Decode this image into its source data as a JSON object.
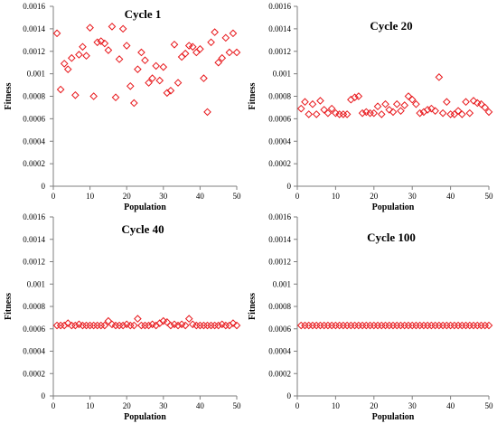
{
  "chart_data": [
    {
      "type": "scatter",
      "title": "Cycle 1",
      "xlabel": "Population",
      "ylabel": "Fitness",
      "xlim": [
        0,
        50
      ],
      "ylim": [
        0,
        0.0016
      ],
      "xticks": [
        "0",
        "10",
        "20",
        "30",
        "40",
        "50"
      ],
      "yticks": [
        "0",
        "0.0002",
        "0.0004",
        "0.0006",
        "0.0008",
        "0.001",
        "0.0012",
        "0.0014",
        "0.0016"
      ],
      "grid": false,
      "series": [
        {
          "x": [
            1,
            2,
            3,
            4,
            5,
            6,
            7,
            8,
            9,
            10,
            11,
            12,
            13,
            14,
            15,
            16,
            17,
            18,
            19,
            20,
            21,
            22,
            23,
            24,
            25,
            26,
            27,
            28,
            29,
            30,
            31,
            32,
            33,
            34,
            35,
            36,
            37,
            38,
            39,
            40,
            41,
            42,
            43,
            44,
            45,
            46,
            47,
            48,
            49,
            50
          ],
          "y": [
            0.00136,
            0.00086,
            0.00109,
            0.00104,
            0.00114,
            0.00081,
            0.00117,
            0.00124,
            0.00116,
            0.00141,
            0.0008,
            0.00128,
            0.00129,
            0.00127,
            0.00121,
            0.00142,
            0.00079,
            0.00113,
            0.0014,
            0.00125,
            0.00089,
            0.00074,
            0.00104,
            0.00119,
            0.00112,
            0.00092,
            0.00096,
            0.00107,
            0.00094,
            0.00106,
            0.00083,
            0.00085,
            0.00126,
            0.00092,
            0.00115,
            0.00118,
            0.00125,
            0.00124,
            0.00119,
            0.00122,
            0.00096,
            0.00066,
            0.00128,
            0.00137,
            0.0011,
            0.00114,
            0.00132,
            0.00119,
            0.00136,
            0.00119
          ]
        }
      ]
    },
    {
      "type": "scatter",
      "title": "Cycle 20",
      "xlabel": "Population",
      "ylabel": "Fitness",
      "xlim": [
        0,
        50
      ],
      "ylim": [
        0,
        0.0016
      ],
      "xticks": [
        "0",
        "10",
        "20",
        "30",
        "40",
        "50"
      ],
      "yticks": [
        "0",
        "0.0002",
        "0.0004",
        "0.0006",
        "0.0008",
        "0.001",
        "0.0012",
        "0.0014",
        "0.0016"
      ],
      "grid": false,
      "series": [
        {
          "x": [
            1,
            2,
            3,
            4,
            5,
            6,
            7,
            8,
            9,
            10,
            11,
            12,
            13,
            14,
            15,
            16,
            17,
            18,
            19,
            20,
            21,
            22,
            23,
            24,
            25,
            26,
            27,
            28,
            29,
            30,
            31,
            32,
            33,
            34,
            35,
            36,
            37,
            38,
            39,
            40,
            41,
            42,
            43,
            44,
            45,
            46,
            47,
            48,
            49,
            50
          ],
          "y": [
            0.00069,
            0.00075,
            0.00064,
            0.00073,
            0.00064,
            0.00076,
            0.00068,
            0.00065,
            0.00069,
            0.00065,
            0.00064,
            0.00064,
            0.00064,
            0.00077,
            0.00079,
            0.0008,
            0.00065,
            0.00066,
            0.00065,
            0.00065,
            0.00071,
            0.00064,
            0.00073,
            0.00068,
            0.00066,
            0.00073,
            0.00067,
            0.00072,
            0.0008,
            0.00077,
            0.00073,
            0.00065,
            0.00066,
            0.00068,
            0.00069,
            0.00067,
            0.00097,
            0.00065,
            0.00075,
            0.00064,
            0.00064,
            0.00067,
            0.00064,
            0.00075,
            0.00065,
            0.00076,
            0.00074,
            0.00073,
            0.0007,
            0.00066
          ]
        }
      ]
    },
    {
      "type": "scatter",
      "title": "Cycle 40",
      "xlabel": "Population",
      "ylabel": "Fitness",
      "xlim": [
        0,
        50
      ],
      "ylim": [
        0,
        0.0016
      ],
      "xticks": [
        "0",
        "10",
        "20",
        "30",
        "40",
        "50"
      ],
      "yticks": [
        "0",
        "0.0002",
        "0.0004",
        "0.0006",
        "0.0008",
        "0.001",
        "0.0012",
        "0.0014",
        "0.0016"
      ],
      "grid": false,
      "series": [
        {
          "x": [
            1,
            2,
            3,
            4,
            5,
            6,
            7,
            8,
            9,
            10,
            11,
            12,
            13,
            14,
            15,
            16,
            17,
            18,
            19,
            20,
            21,
            22,
            23,
            24,
            25,
            26,
            27,
            28,
            29,
            30,
            31,
            32,
            33,
            34,
            35,
            36,
            37,
            38,
            39,
            40,
            41,
            42,
            43,
            44,
            45,
            46,
            47,
            48,
            49,
            50
          ],
          "y": [
            0.00063,
            0.00063,
            0.00063,
            0.00065,
            0.00063,
            0.00063,
            0.00064,
            0.00063,
            0.00063,
            0.00063,
            0.00063,
            0.00063,
            0.00063,
            0.00063,
            0.00067,
            0.00064,
            0.00063,
            0.00063,
            0.00063,
            0.00064,
            0.00063,
            0.00063,
            0.00069,
            0.00063,
            0.00063,
            0.00063,
            0.00064,
            0.00063,
            0.00065,
            0.00067,
            0.00066,
            0.00063,
            0.00064,
            0.00063,
            0.00064,
            0.00063,
            0.00069,
            0.00064,
            0.00063,
            0.00063,
            0.00063,
            0.00063,
            0.00063,
            0.00063,
            0.00063,
            0.00064,
            0.00063,
            0.00063,
            0.00065,
            0.00063
          ]
        }
      ]
    },
    {
      "type": "scatter",
      "title": "Cycle 100",
      "xlabel": "Population",
      "ylabel": "Fitness",
      "xlim": [
        0,
        50
      ],
      "ylim": [
        0,
        0.0016
      ],
      "xticks": [
        "0",
        "10",
        "20",
        "30",
        "40",
        "50"
      ],
      "yticks": [
        "0",
        "0.0002",
        "0.0004",
        "0.0006",
        "0.0008",
        "0.001",
        "0.0012",
        "0.0014",
        "0.0016"
      ],
      "grid": false,
      "series": [
        {
          "x": [
            1,
            2,
            3,
            4,
            5,
            6,
            7,
            8,
            9,
            10,
            11,
            12,
            13,
            14,
            15,
            16,
            17,
            18,
            19,
            20,
            21,
            22,
            23,
            24,
            25,
            26,
            27,
            28,
            29,
            30,
            31,
            32,
            33,
            34,
            35,
            36,
            37,
            38,
            39,
            40,
            41,
            42,
            43,
            44,
            45,
            46,
            47,
            48,
            49,
            50
          ],
          "y": [
            0.00063,
            0.00063,
            0.00063,
            0.00063,
            0.00063,
            0.00063,
            0.00063,
            0.00063,
            0.00063,
            0.00063,
            0.00063,
            0.00063,
            0.00063,
            0.00063,
            0.00063,
            0.00063,
            0.00063,
            0.00063,
            0.00063,
            0.00063,
            0.00063,
            0.00063,
            0.00063,
            0.00063,
            0.00063,
            0.00063,
            0.00063,
            0.00063,
            0.00063,
            0.00063,
            0.00063,
            0.00063,
            0.00063,
            0.00063,
            0.00063,
            0.00063,
            0.00063,
            0.00063,
            0.00063,
            0.00063,
            0.00063,
            0.00063,
            0.00063,
            0.00063,
            0.00063,
            0.00063,
            0.00063,
            0.00063,
            0.00063,
            0.00063
          ]
        }
      ]
    }
  ],
  "marker_color": "#e8171b",
  "axis_color": "#7f7f7f",
  "marker": "open-diamond"
}
